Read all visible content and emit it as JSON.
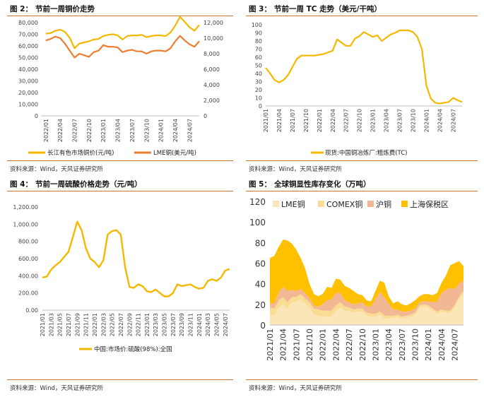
{
  "source_note": "资料来源：Wind，天风证券研究所",
  "colors": {
    "gold": "#f5b800",
    "orange": "#ed7d31",
    "rule": "#c8782a"
  },
  "panels": [
    {
      "id": "fig2",
      "title_prefix": "图 2：",
      "title": "节前一周铜价走势",
      "chart_data": {
        "type": "line",
        "x_tick_labels": [
          "2022/01",
          "2022/04",
          "2022/07",
          "2022/10",
          "2023/01",
          "2023/04",
          "2023/07",
          "2023/10",
          "2024/01",
          "2024/04",
          "2024/07"
        ],
        "xlim": [
          "2021/12",
          "2024/09"
        ],
        "y_left": {
          "ylim": [
            0,
            80000
          ],
          "ticks": [
            "0",
            "10,000",
            "20,000",
            "30,000",
            "40,000",
            "50,000",
            "60,000",
            "70,000",
            "80,000"
          ]
        },
        "y_right": {
          "ylim": [
            0,
            12000
          ],
          "ticks": [
            "0",
            "2,000",
            "4,000",
            "6,000",
            "8,000",
            "10,000",
            "12,000"
          ]
        },
        "legend_position": "bottom",
        "series": [
          {
            "name": "长江有色市场铜价(元/吨)",
            "axis": "left",
            "color": "#f5b800",
            "x": [
              "2022/01",
              "2022/02",
              "2022/03",
              "2022/04",
              "2022/05",
              "2022/06",
              "2022/07",
              "2022/08",
              "2022/09",
              "2022/10",
              "2022/11",
              "2022/12",
              "2023/01",
              "2023/02",
              "2023/03",
              "2023/04",
              "2023/05",
              "2023/06",
              "2023/07",
              "2023/08",
              "2023/09",
              "2023/10",
              "2023/11",
              "2023/12",
              "2024/01",
              "2024/02",
              "2024/03",
              "2024/04",
              "2024/05",
              "2024/06",
              "2024/07",
              "2024/08",
              "2024/09"
            ],
            "values": [
              70500,
              71000,
              73000,
              74000,
              72000,
              67000,
              58000,
              62000,
              63000,
              64000,
              65500,
              66000,
              68500,
              69500,
              70000,
              69000,
              65500,
              68500,
              69000,
              69000,
              69500,
              67500,
              68500,
              69000,
              69000,
              68500,
              71500,
              77500,
              85000,
              80500,
              76000,
              73000,
              78000
            ]
          },
          {
            "name": "LME铜(美元/吨)",
            "axis": "right",
            "color": "#ed7d31",
            "x": [
              "2022/01",
              "2022/02",
              "2022/03",
              "2022/04",
              "2022/05",
              "2022/06",
              "2022/07",
              "2022/08",
              "2022/09",
              "2022/10",
              "2022/11",
              "2022/12",
              "2023/01",
              "2023/02",
              "2023/03",
              "2023/04",
              "2023/05",
              "2023/06",
              "2023/07",
              "2023/08",
              "2023/09",
              "2023/10",
              "2023/11",
              "2023/12",
              "2024/01",
              "2024/02",
              "2024/03",
              "2024/04",
              "2024/05",
              "2024/06",
              "2024/07",
              "2024/08",
              "2024/09"
            ],
            "values": [
              9700,
              9900,
              10200,
              10000,
              9300,
              8400,
              7500,
              8000,
              7800,
              7600,
              8200,
              8400,
              9100,
              8900,
              8900,
              8800,
              8200,
              8400,
              8500,
              8300,
              8300,
              8000,
              8300,
              8400,
              8400,
              8300,
              8700,
              9600,
              10300,
              9700,
              9200,
              8900,
              9600
            ]
          }
        ]
      }
    },
    {
      "id": "fig3",
      "title_prefix": "图 3：",
      "title": "节前一周 TC 走势（美元/干吨）",
      "chart_data": {
        "type": "line",
        "x_tick_labels": [
          "2021/01",
          "2021/04",
          "2021/07",
          "2021/10",
          "2022/01",
          "2022/04",
          "2022/07",
          "2022/10",
          "2023/01",
          "2023/04",
          "2023/07",
          "2023/10",
          "2024/01",
          "2024/04",
          "2024/07"
        ],
        "xlim": [
          "2021/01",
          "2024/09"
        ],
        "ylim": [
          0,
          100
        ],
        "y_ticks": [
          "0",
          "10",
          "20",
          "30",
          "40",
          "50",
          "60",
          "70",
          "80",
          "90",
          "100"
        ],
        "legend_position": "bottom",
        "series": [
          {
            "name": "现货:中国铜冶炼厂:粗炼费(TC)",
            "color": "#f5b800",
            "x": [
              "2021/01",
              "2021/02",
              "2021/03",
              "2021/04",
              "2021/05",
              "2021/06",
              "2021/07",
              "2021/08",
              "2021/09",
              "2021/10",
              "2021/11",
              "2021/12",
              "2022/01",
              "2022/02",
              "2022/03",
              "2022/04",
              "2022/05",
              "2022/06",
              "2022/07",
              "2022/08",
              "2022/09",
              "2022/10",
              "2022/11",
              "2022/12",
              "2023/01",
              "2023/02",
              "2023/03",
              "2023/04",
              "2023/05",
              "2023/06",
              "2023/07",
              "2023/08",
              "2023/09",
              "2023/10",
              "2023/11",
              "2023/12",
              "2024/01",
              "2024/02",
              "2024/03",
              "2024/04",
              "2024/05",
              "2024/06",
              "2024/07",
              "2024/08",
              "2024/09"
            ],
            "values": [
              47,
              40,
              32,
              29,
              32,
              38,
              48,
              58,
              62,
              62,
              62,
              62,
              63,
              64,
              66,
              68,
              82,
              78,
              74,
              74,
              83,
              86,
              91,
              88,
              85,
              87,
              80,
              84,
              88,
              90,
              93,
              93,
              93,
              91,
              85,
              70,
              25,
              9,
              4,
              3,
              4,
              5,
              10,
              7,
              5
            ]
          }
        ]
      }
    },
    {
      "id": "fig4",
      "title_prefix": "图 4：",
      "title": "节前一周硫酸价格走势（元/吨）",
      "chart_data": {
        "type": "line",
        "x_tick_labels": [
          "2021/01",
          "2021/03",
          "2021/05",
          "2021/07",
          "2021/09",
          "2021/11",
          "2022/01",
          "2022/03",
          "2022/05",
          "2022/07",
          "2022/09",
          "2022/11",
          "2023/01",
          "2023/03",
          "2023/05",
          "2023/07",
          "2023/09",
          "2023/11",
          "2024/01",
          "2024/03",
          "2024/05",
          "2024/07"
        ],
        "xlim": [
          "2021/01",
          "2024/08"
        ],
        "ylim": [
          0,
          1200
        ],
        "y_ticks": [
          "0.00",
          "200.00",
          "400.00",
          "600.00",
          "800.00",
          "1,000.00",
          "1,200.00"
        ],
        "legend_position": "bottom",
        "series": [
          {
            "name": "中国:市场价:硫酸(98%):全国",
            "color": "#f5b800",
            "x": [
              "2021/01",
              "2021/02",
              "2021/03",
              "2021/04",
              "2021/05",
              "2021/06",
              "2021/07",
              "2021/08",
              "2021/09",
              "2021/10",
              "2021/11",
              "2021/12",
              "2022/01",
              "2022/02",
              "2022/03",
              "2022/04",
              "2022/05",
              "2022/06",
              "2022/07",
              "2022/08",
              "2022/09",
              "2022/10",
              "2022/11",
              "2022/12",
              "2023/01",
              "2023/02",
              "2023/03",
              "2023/04",
              "2023/05",
              "2023/06",
              "2023/07",
              "2023/08",
              "2023/09",
              "2023/10",
              "2023/11",
              "2023/12",
              "2024/01",
              "2024/02",
              "2024/03",
              "2024/04",
              "2024/05",
              "2024/06",
              "2024/07",
              "2024/08"
            ],
            "values": [
              380,
              390,
              470,
              520,
              560,
              620,
              680,
              850,
              1030,
              930,
              720,
              600,
              560,
              500,
              580,
              880,
              920,
              930,
              880,
              500,
              270,
              260,
              300,
              280,
              220,
              210,
              240,
              200,
              160,
              160,
              200,
              300,
              280,
              290,
              300,
              270,
              250,
              260,
              340,
              360,
              340,
              380,
              460,
              480
            ]
          }
        ]
      }
    },
    {
      "id": "fig5",
      "title_prefix": "图 5：",
      "title": "全球铜显性库存变化（万吨）",
      "chart_data": {
        "type": "area",
        "stacked": true,
        "x_tick_labels": [
          "2021/01",
          "2021/04",
          "2021/07",
          "2021/10",
          "2022/01",
          "2022/04",
          "2022/07",
          "2022/10",
          "2023/01",
          "2023/04",
          "2023/07",
          "2023/10",
          "2024/01",
          "2024/04",
          "2024/07"
        ],
        "xlim": [
          "2021/01",
          "2024/09"
        ],
        "ylim": [
          0,
          120
        ],
        "y_ticks": [
          "0",
          "20",
          "40",
          "60",
          "80",
          "100",
          "120"
        ],
        "legend_position": "top",
        "x": [
          "2021/01",
          "2021/02",
          "2021/03",
          "2021/04",
          "2021/05",
          "2021/06",
          "2021/07",
          "2021/08",
          "2021/09",
          "2021/10",
          "2021/11",
          "2021/12",
          "2022/01",
          "2022/02",
          "2022/03",
          "2022/04",
          "2022/05",
          "2022/06",
          "2022/07",
          "2022/08",
          "2022/09",
          "2022/10",
          "2022/11",
          "2022/12",
          "2023/01",
          "2023/02",
          "2023/03",
          "2023/04",
          "2023/05",
          "2023/06",
          "2023/07",
          "2023/08",
          "2023/09",
          "2023/10",
          "2023/11",
          "2023/12",
          "2024/01",
          "2024/02",
          "2024/03",
          "2024/04",
          "2024/05",
          "2024/06",
          "2024/07",
          "2024/08",
          "2024/09"
        ],
        "series": [
          {
            "name": "LME铜",
            "color": "#fbe6b8",
            "values": [
              10,
              9,
              17,
              20,
              16,
              22,
              22,
              25,
              21,
              17,
              10,
              9,
              8,
              8,
              8,
              14,
              17,
              14,
              13,
              12,
              13,
              13,
              9,
              8,
              8,
              10,
              6,
              6,
              7,
              8,
              6,
              7,
              8,
              9,
              17,
              18,
              17,
              14,
              11,
              13,
              12,
              12,
              17,
              25,
              30
            ]
          },
          {
            "name": "COMEX铜",
            "color": "#f9dd95",
            "values": [
              7,
              7,
              7,
              7,
              6,
              5,
              5,
              5,
              5,
              5,
              6,
              6,
              6,
              6,
              6,
              5,
              5,
              4,
              4,
              3,
              3,
              3,
              3,
              3,
              3,
              3,
              3,
              3,
              2,
              2,
              2,
              2,
              2,
              3,
              2,
              2,
              2,
              2,
              2,
              2,
              2,
              2,
              2,
              3,
              3
            ]
          },
          {
            "name": "沪铜",
            "color": "#f2b793",
            "values": [
              4,
              5,
              8,
              10,
              11,
              7,
              6,
              5,
              5,
              4,
              3,
              3,
              6,
              10,
              11,
              12,
              9,
              6,
              5,
              5,
              5,
              6,
              6,
              7,
              14,
              19,
              18,
              12,
              6,
              5,
              5,
              4,
              4,
              4,
              3,
              3,
              4,
              6,
              10,
              16,
              20,
              22,
              16,
              12,
              10
            ]
          },
          {
            "name": "上海保税区",
            "color": "#ffc000",
            "values": [
              44,
              46,
              44,
              46,
              49,
              45,
              40,
              30,
              24,
              14,
              11,
              10,
              10,
              13,
              11,
              14,
              13,
              14,
              14,
              13,
              9,
              7,
              6,
              5,
              8,
              11,
              14,
              7,
              6,
              8,
              7,
              6,
              7,
              8,
              6,
              7,
              7,
              7,
              8,
              10,
              14,
              22,
              25,
              22,
              14
            ]
          }
        ]
      }
    }
  ]
}
